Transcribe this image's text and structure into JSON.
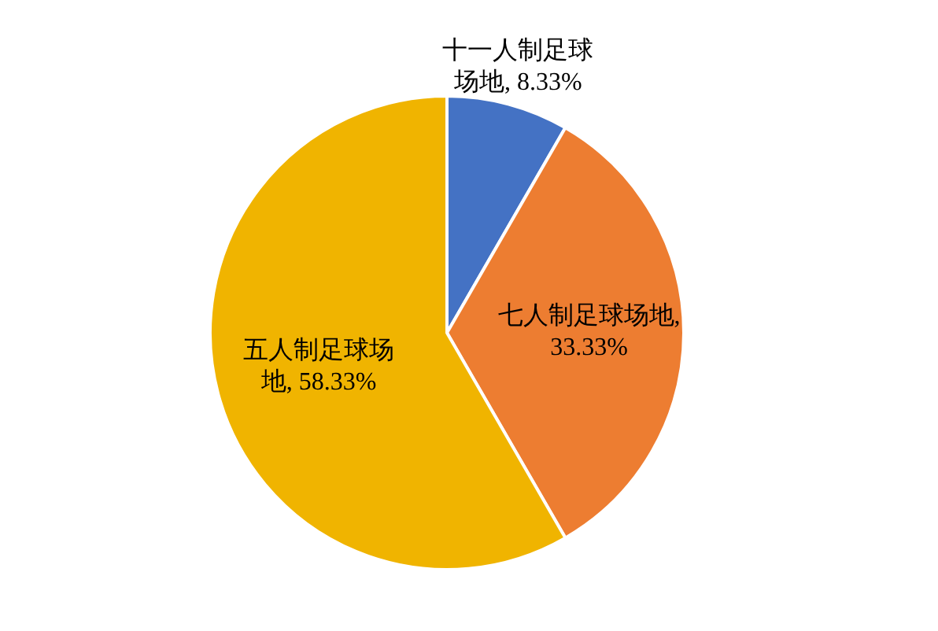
{
  "chart_data": {
    "type": "pie",
    "categories": [
      "十一人制足球场地",
      "七人制足球场地",
      "五人制足球场地"
    ],
    "values": [
      8.33,
      33.33,
      58.33
    ],
    "colors": [
      "#4472c4",
      "#ed7d31",
      "#f0b400"
    ],
    "value_labels": [
      ", 8.33%",
      ", 33.33%",
      ", 58.33%"
    ]
  }
}
